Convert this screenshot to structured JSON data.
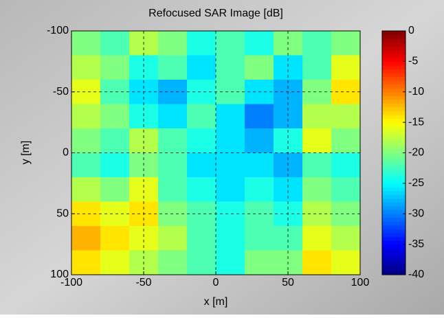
{
  "chart_data": {
    "type": "heatmap",
    "title": "Refocused SAR Image [dB]",
    "x_label": "x [m]",
    "y_label": "y [m]",
    "x": [
      -90,
      -70,
      -50,
      -30,
      -10,
      10,
      30,
      50,
      70,
      90
    ],
    "y": [
      -90,
      -70,
      -50,
      -30,
      -10,
      10,
      30,
      50,
      70,
      90
    ],
    "z": [
      [
        -20,
        -22,
        -18,
        -20,
        -24,
        -22,
        -24,
        -20,
        -22,
        -20
      ],
      [
        -18,
        -20,
        -24,
        -22,
        -26,
        -22,
        -20,
        -26,
        -22,
        -16
      ],
      [
        -16,
        -22,
        -26,
        -28,
        -24,
        -22,
        -26,
        -28,
        -20,
        -14
      ],
      [
        -18,
        -20,
        -24,
        -26,
        -22,
        -26,
        -30,
        -28,
        -18,
        -18
      ],
      [
        -20,
        -22,
        -18,
        -22,
        -24,
        -26,
        -28,
        -24,
        -16,
        -20
      ],
      [
        -22,
        -24,
        -20,
        -22,
        -26,
        -26,
        -26,
        -28,
        -22,
        -24
      ],
      [
        -18,
        -20,
        -16,
        -22,
        -24,
        -26,
        -24,
        -26,
        -20,
        -22
      ],
      [
        -14,
        -16,
        -14,
        -20,
        -22,
        -24,
        -22,
        -24,
        -18,
        -20
      ],
      [
        -12,
        -14,
        -16,
        -18,
        -22,
        -24,
        -22,
        -22,
        -16,
        -18
      ],
      [
        -14,
        -16,
        -18,
        -20,
        -22,
        -24,
        -20,
        -20,
        -14,
        -16
      ]
    ],
    "xlim": [
      -100,
      100
    ],
    "ylim": [
      -100,
      100
    ],
    "y_reversed": true,
    "xticks": [
      -100,
      -50,
      0,
      50,
      100
    ],
    "yticks": [
      -100,
      -50,
      0,
      50,
      100
    ],
    "grid": true,
    "colormap": "jet",
    "clim": [
      -40,
      0
    ],
    "colorbar_ticks": [
      0,
      -5,
      -10,
      -15,
      -20,
      -25,
      -30,
      -35,
      -40
    ]
  }
}
